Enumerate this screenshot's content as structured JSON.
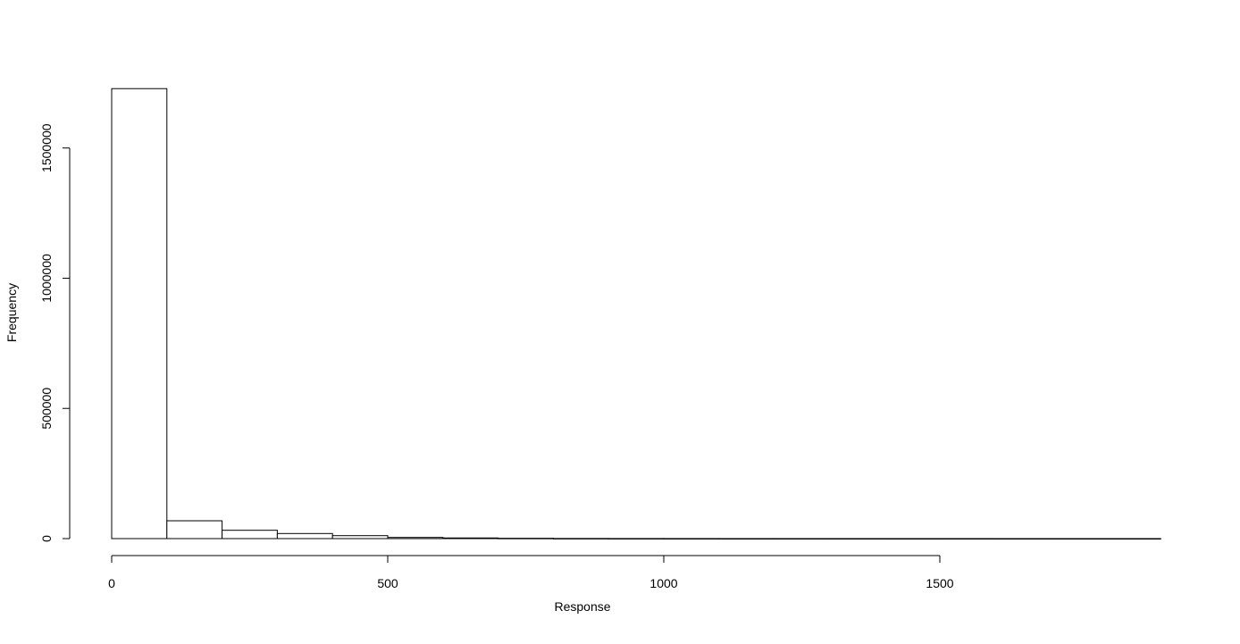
{
  "chart_data": {
    "type": "bar",
    "subtype": "histogram",
    "title": "",
    "xlabel": "Response",
    "ylabel": "Frequency",
    "bin_edges": [
      0,
      100,
      200,
      300,
      400,
      500,
      600,
      700,
      800,
      900,
      1000,
      1100,
      1200,
      1300,
      1400,
      1500,
      1600,
      1700,
      1800,
      1900
    ],
    "values": [
      1728000,
      68500,
      32000,
      19500,
      11300,
      4500,
      2500,
      1200,
      500,
      300,
      200,
      100,
      80,
      60,
      40,
      30,
      20,
      10,
      10
    ],
    "xlim": [
      0,
      1900
    ],
    "ylim": [
      0,
      1728000
    ],
    "x_ticks": [
      0,
      500,
      1000,
      1500
    ],
    "x_tick_labels": [
      "0",
      "500",
      "1000",
      "1500"
    ],
    "y_ticks": [
      0,
      500000,
      1000000,
      1500000
    ],
    "y_tick_labels": [
      "0",
      "500000",
      "1000000",
      "1500000"
    ],
    "grid": false,
    "bar_fill": "#ffffff",
    "bar_stroke": "#000000"
  }
}
